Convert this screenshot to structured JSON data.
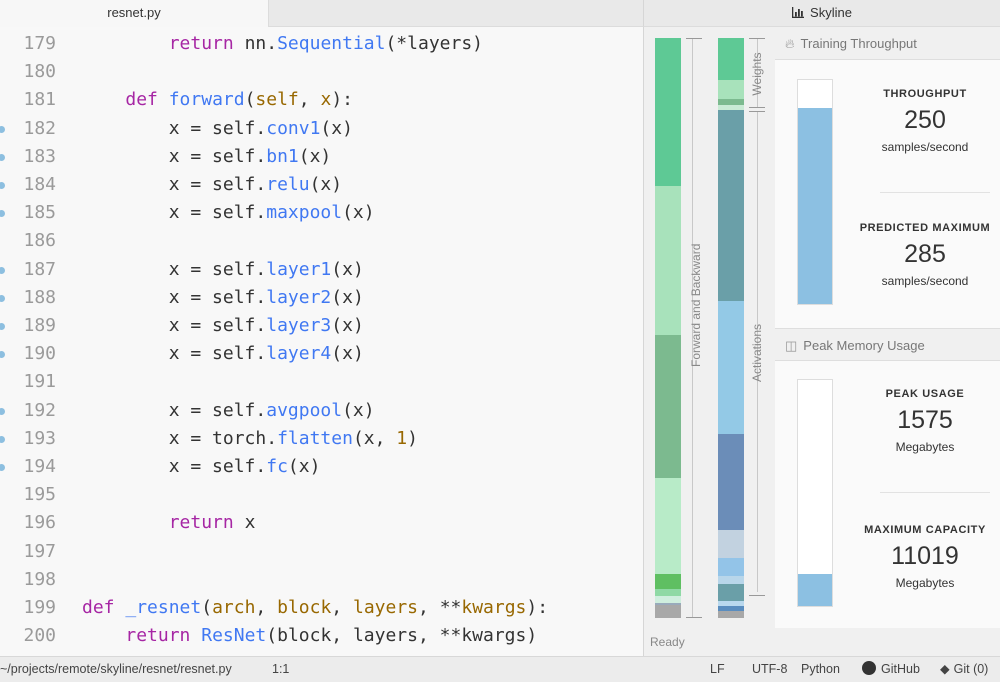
{
  "editor": {
    "tab_title": "resnet.py",
    "lines": [
      {
        "num": "179",
        "dot": false,
        "tokens": [
          [
            "        ",
            ""
          ],
          [
            "return",
            "kw"
          ],
          [
            " nn.",
            ""
          ],
          [
            "Sequential",
            "fn"
          ],
          [
            "(*layers)",
            ""
          ]
        ]
      },
      {
        "num": "180",
        "dot": false,
        "tokens": []
      },
      {
        "num": "181",
        "dot": false,
        "tokens": [
          [
            "    ",
            ""
          ],
          [
            "def",
            "kw"
          ],
          [
            " ",
            ""
          ],
          [
            "forward",
            "fn"
          ],
          [
            "(",
            ""
          ],
          [
            "self",
            "pr"
          ],
          [
            ", ",
            ""
          ],
          [
            "x",
            "pr"
          ],
          [
            "):",
            ""
          ]
        ]
      },
      {
        "num": "182",
        "dot": true,
        "tokens": [
          [
            "        x = self.",
            ""
          ],
          [
            "conv1",
            "fn"
          ],
          [
            "(x)",
            ""
          ]
        ]
      },
      {
        "num": "183",
        "dot": true,
        "tokens": [
          [
            "        x = self.",
            ""
          ],
          [
            "bn1",
            "fn"
          ],
          [
            "(x)",
            ""
          ]
        ]
      },
      {
        "num": "184",
        "dot": true,
        "tokens": [
          [
            "        x = self.",
            ""
          ],
          [
            "relu",
            "fn"
          ],
          [
            "(x)",
            ""
          ]
        ]
      },
      {
        "num": "185",
        "dot": true,
        "tokens": [
          [
            "        x = self.",
            ""
          ],
          [
            "maxpool",
            "fn"
          ],
          [
            "(x)",
            ""
          ]
        ]
      },
      {
        "num": "186",
        "dot": false,
        "tokens": []
      },
      {
        "num": "187",
        "dot": true,
        "tokens": [
          [
            "        x = self.",
            ""
          ],
          [
            "layer1",
            "fn"
          ],
          [
            "(x)",
            ""
          ]
        ]
      },
      {
        "num": "188",
        "dot": true,
        "tokens": [
          [
            "        x = self.",
            ""
          ],
          [
            "layer2",
            "fn"
          ],
          [
            "(x)",
            ""
          ]
        ]
      },
      {
        "num": "189",
        "dot": true,
        "tokens": [
          [
            "        x = self.",
            ""
          ],
          [
            "layer3",
            "fn"
          ],
          [
            "(x)",
            ""
          ]
        ]
      },
      {
        "num": "190",
        "dot": true,
        "tokens": [
          [
            "        x = self.",
            ""
          ],
          [
            "layer4",
            "fn"
          ],
          [
            "(x)",
            ""
          ]
        ]
      },
      {
        "num": "191",
        "dot": false,
        "tokens": []
      },
      {
        "num": "192",
        "dot": true,
        "tokens": [
          [
            "        x = self.",
            ""
          ],
          [
            "avgpool",
            "fn"
          ],
          [
            "(x)",
            ""
          ]
        ]
      },
      {
        "num": "193",
        "dot": true,
        "tokens": [
          [
            "        x = torch.",
            ""
          ],
          [
            "flatten",
            "fn"
          ],
          [
            "(x, ",
            ""
          ],
          [
            "1",
            "nm"
          ],
          [
            ")",
            ""
          ]
        ]
      },
      {
        "num": "194",
        "dot": true,
        "tokens": [
          [
            "        x = self.",
            ""
          ],
          [
            "fc",
            "fn"
          ],
          [
            "(x)",
            ""
          ]
        ]
      },
      {
        "num": "195",
        "dot": false,
        "tokens": []
      },
      {
        "num": "196",
        "dot": false,
        "tokens": [
          [
            "        ",
            ""
          ],
          [
            "return",
            "kw"
          ],
          [
            " x",
            ""
          ]
        ]
      },
      {
        "num": "197",
        "dot": false,
        "tokens": []
      },
      {
        "num": "198",
        "dot": false,
        "tokens": []
      },
      {
        "num": "199",
        "dot": false,
        "tokens": [
          [
            "def",
            "kw"
          ],
          [
            " ",
            ""
          ],
          [
            "_resnet",
            "fn"
          ],
          [
            "(",
            ""
          ],
          [
            "arch",
            "pr"
          ],
          [
            ", ",
            ""
          ],
          [
            "block",
            "pr"
          ],
          [
            ", ",
            ""
          ],
          [
            "layers",
            "pr"
          ],
          [
            ", **",
            ""
          ],
          [
            "kwargs",
            "pr"
          ],
          [
            "):",
            ""
          ]
        ]
      },
      {
        "num": "200",
        "dot": false,
        "tokens": [
          [
            "    ",
            ""
          ],
          [
            "return",
            "kw"
          ],
          [
            " ",
            ""
          ],
          [
            "ResNet",
            "fn"
          ],
          [
            "(block, layers, **kwargs)",
            ""
          ]
        ]
      }
    ]
  },
  "skyline": {
    "title": "Skyline",
    "chart_icon": "bar-chart-icon",
    "breakdown": {
      "fb_label": "Forward and Backward",
      "weights_label": "Weights",
      "activations_label": "Activations",
      "fb_segments": [
        {
          "frac": 0.256,
          "color": "#5ec995"
        },
        {
          "frac": 0.256,
          "color": "#a8e2bb"
        },
        {
          "frac": 0.246,
          "color": "#7cba8f"
        },
        {
          "frac": 0.166,
          "color": "#b8ebc8"
        },
        {
          "frac": 0.026,
          "color": "#5fbf62"
        },
        {
          "frac": 0.012,
          "color": "#8fd9a5"
        },
        {
          "frac": 0.012,
          "color": "#cfeede"
        },
        {
          "frac": 0.004,
          "color": "#9ab"
        },
        {
          "frac": 0.022,
          "color": "#a8a8a8"
        }
      ],
      "weight_segments": [
        {
          "frac": 0.072,
          "color": "#5ec995"
        },
        {
          "frac": 0.034,
          "color": "#a8e2bb"
        },
        {
          "frac": 0.01,
          "color": "#7cba8f"
        },
        {
          "frac": 0.008,
          "color": "#c9ebd5"
        },
        {
          "frac": 0.33,
          "color": "#6a9fa8"
        },
        {
          "frac": 0.228,
          "color": "#93c9e6"
        },
        {
          "frac": 0.166,
          "color": "#6b8db8"
        },
        {
          "frac": 0.048,
          "color": "#c2d2e0"
        },
        {
          "frac": 0.032,
          "color": "#93c4e8"
        },
        {
          "frac": 0.014,
          "color": "#b8d6ea"
        },
        {
          "frac": 0.028,
          "color": "#6a9fa8"
        },
        {
          "frac": 0.01,
          "color": "#b9d8ee"
        },
        {
          "frac": 0.008,
          "color": "#5a8dbf"
        },
        {
          "frac": 0.012,
          "color": "#a8a8a8"
        }
      ]
    },
    "throughput": {
      "title": "Training Throughput",
      "icon": "fire-icon",
      "label": "Throughput",
      "value": "250",
      "unit": "samples/second",
      "max_label": "Predicted Maximum",
      "max_value": "285",
      "max_unit": "samples/second",
      "fill_fraction": 0.877
    },
    "memory": {
      "title": "Peak Memory Usage",
      "icon": "database-icon",
      "label": "Peak Usage",
      "value": "1575",
      "unit": "Megabytes",
      "max_label": "Maximum Capacity",
      "max_value": "11019",
      "max_unit": "Megabytes",
      "fill_fraction": 0.143
    },
    "status": "Ready"
  },
  "statusbar": {
    "path": "~/projects/remote/skyline/resnet/resnet.py",
    "cursor": "1:1",
    "line_ending": "LF",
    "encoding": "UTF-8",
    "grammar": "Python",
    "github": "GitHub",
    "git": "Git (0)"
  },
  "colors": {
    "gauge_fill": "#8cc0e2",
    "keyword": "#a626a4",
    "function": "#4078f2",
    "param": "#986801"
  }
}
